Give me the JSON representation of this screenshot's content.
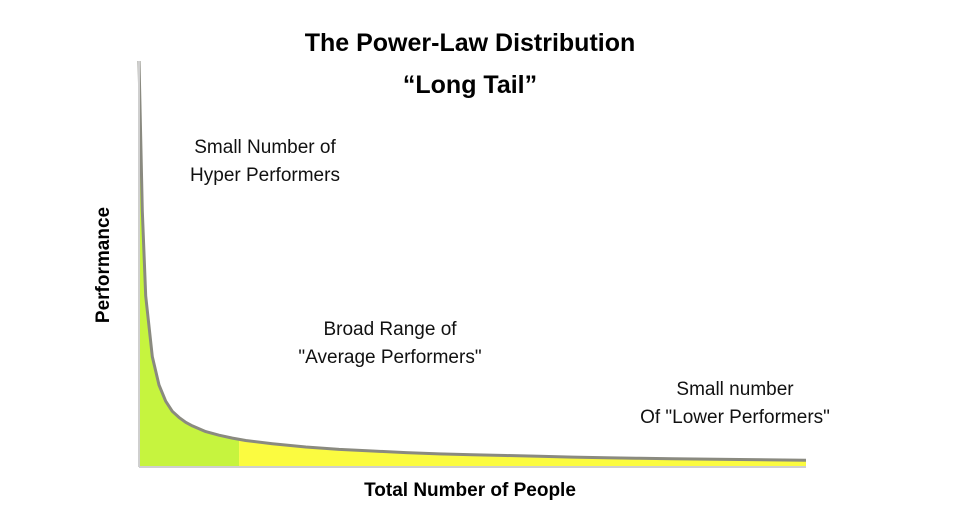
{
  "title": "The Power-Law Distribution",
  "subtitle": "“Long Tail”",
  "chart_data": {
    "type": "area",
    "xlabel": "Total Number  of People",
    "ylabel": "Performance",
    "annotations": [
      {
        "line1": "Small Number of",
        "line2": "Hyper Performers"
      },
      {
        "line1": "Broad Range of",
        "line2": "\"Average Performers\""
      },
      {
        "line1": "Small number",
        "line2": "Of \"Lower Performers\""
      }
    ],
    "x": [
      0,
      0.5,
      1,
      2,
      3,
      4,
      5,
      6,
      7,
      8,
      10,
      12,
      14,
      16,
      20,
      25,
      30,
      35,
      40,
      45,
      50,
      55,
      60,
      65,
      70,
      75,
      80,
      85,
      90,
      95,
      100
    ],
    "y": [
      100,
      63,
      42,
      27,
      20,
      16,
      13.5,
      12,
      10.8,
      9.9,
      8.5,
      7.6,
      6.9,
      6.3,
      5.5,
      4.7,
      4.1,
      3.7,
      3.3,
      3.0,
      2.8,
      2.6,
      2.4,
      2.2,
      2.05,
      1.9,
      1.8,
      1.7,
      1.6,
      1.5,
      1.4
    ],
    "xlim": [
      0,
      100
    ],
    "ylim": [
      0,
      100
    ],
    "head_split_x": 15,
    "grid": false,
    "colors": {
      "head": "#c6f43e",
      "tail": "#fbfb40",
      "curve": "#8a8a80",
      "axis": "#cfcfcf"
    }
  }
}
